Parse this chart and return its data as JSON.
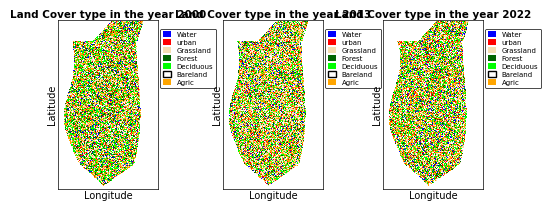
{
  "titles": [
    "Land Cover type in the year 2000",
    "Land Cover type in the year 2013",
    "Land Cover type in the year 2022"
  ],
  "xlabel": "Longitude",
  "ylabel": "Latitude",
  "legend_labels": [
    "Water",
    "urban",
    "Grassland",
    "Forest",
    "Deciduous",
    "Bareland",
    "Agric"
  ],
  "legend_colors": [
    "#0000ff",
    "#ff0000",
    "#f5deb3",
    "#006400",
    "#00ff00",
    "#ffffff",
    "#ffa500"
  ],
  "class_weights_2000": [
    0.05,
    0.06,
    0.2,
    0.12,
    0.22,
    0.1,
    0.25
  ],
  "class_weights_2013": [
    0.05,
    0.07,
    0.25,
    0.1,
    0.18,
    0.1,
    0.25
  ],
  "class_weights_2022": [
    0.06,
    0.07,
    0.18,
    0.1,
    0.2,
    0.12,
    0.27
  ],
  "bg_color": "#ffffff",
  "title_fontsize": 7.5,
  "label_fontsize": 7,
  "legend_fontsize": 5.0,
  "seed_2000": 42,
  "seed_2013": 123,
  "seed_2022": 999
}
